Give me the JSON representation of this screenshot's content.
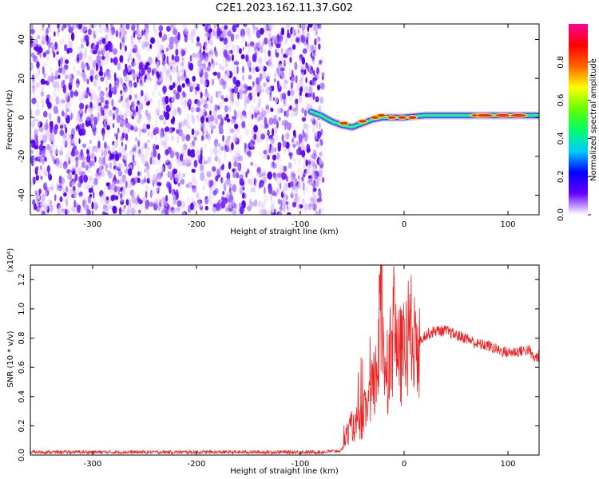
{
  "title": "C2E1.2023.162.11.37.G02",
  "colorbar": {
    "label": "Normalized spectral amplitude",
    "range": [
      0,
      1
    ],
    "ticks": [
      "0.0",
      "0.2",
      "0.4",
      "0.6",
      "0.8"
    ],
    "colors": [
      "#ffffff",
      "#6600ff",
      "#0000ff",
      "#00ccff",
      "#00ff66",
      "#66ff00",
      "#ffff00",
      "#ff6600",
      "#ff0000",
      "#ff0099"
    ]
  },
  "chart_data": [
    {
      "type": "heatmap",
      "name": "spectrogram",
      "xlabel": "Height of straight line (km)",
      "ylabel": "Frequency (Hz)",
      "xlim": [
        -360,
        130
      ],
      "ylim": [
        -50,
        48
      ],
      "xticks": [
        "-300",
        "-200",
        "-100",
        "0",
        "100"
      ],
      "yticks": [
        "-40",
        "-20",
        "0",
        "20",
        "40"
      ],
      "noise_region_x": [
        -360,
        -78
      ],
      "signal_track": {
        "x": [
          -90,
          -80,
          -70,
          -60,
          -50,
          -40,
          -30,
          -20,
          -10,
          0,
          20,
          40,
          60,
          80,
          100,
          120,
          130
        ],
        "y": [
          3,
          1,
          -2,
          -4,
          -5,
          -3,
          -1,
          0,
          0,
          0,
          1,
          1,
          1,
          1,
          1,
          1,
          1
        ]
      }
    },
    {
      "type": "line",
      "name": "snr",
      "xlabel": "Height of straight line (km)",
      "ylabel": "SNR (10 * v/v)",
      "y_scale_note": "(x10⁴)",
      "xlim": [
        -360,
        130
      ],
      "ylim": [
        0,
        1.3
      ],
      "xticks": [
        "-300",
        "-200",
        "-100",
        "0",
        "100"
      ],
      "yticks": [
        "0.0",
        "0.2",
        "0.4",
        "0.6",
        "0.8",
        "1.0",
        "1.2"
      ],
      "series": [
        {
          "color": "#ee2222",
          "x": [
            -360,
            -300,
            -250,
            -200,
            -150,
            -100,
            -80,
            -60,
            -55,
            -50,
            -45,
            -40,
            -35,
            -30,
            -25,
            -22,
            -20,
            -15,
            -10,
            -5,
            0,
            5,
            10,
            15,
            20,
            30,
            40,
            50,
            60,
            70,
            80,
            90,
            100,
            110,
            120,
            125,
            130
          ],
          "y": [
            0.02,
            0.02,
            0.02,
            0.02,
            0.02,
            0.02,
            0.02,
            0.03,
            0.15,
            0.2,
            0.18,
            0.25,
            0.35,
            0.45,
            0.6,
            1.25,
            0.7,
            0.6,
            0.9,
            0.65,
            0.7,
            0.85,
            0.72,
            0.78,
            0.82,
            0.85,
            0.85,
            0.82,
            0.8,
            0.76,
            0.75,
            0.72,
            0.7,
            0.71,
            0.72,
            0.66,
            0.68
          ]
        }
      ]
    }
  ]
}
